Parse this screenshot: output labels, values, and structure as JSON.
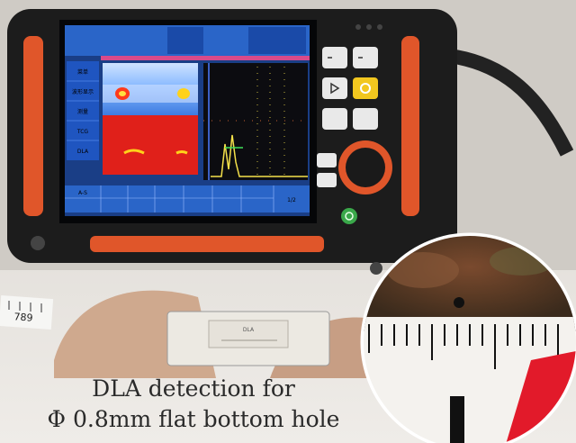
{
  "caption": {
    "line1": "DLA detection for",
    "line2": "Φ 0.8mm flat bottom hole"
  },
  "device_screen": {
    "menu_items": [
      "菜单",
      "波形显示",
      "测量",
      "TCG",
      "DLA"
    ],
    "bottom_labels": [
      "A-S",
      "1/2"
    ]
  },
  "ruler_label": "789",
  "probe_label": "DLA"
}
